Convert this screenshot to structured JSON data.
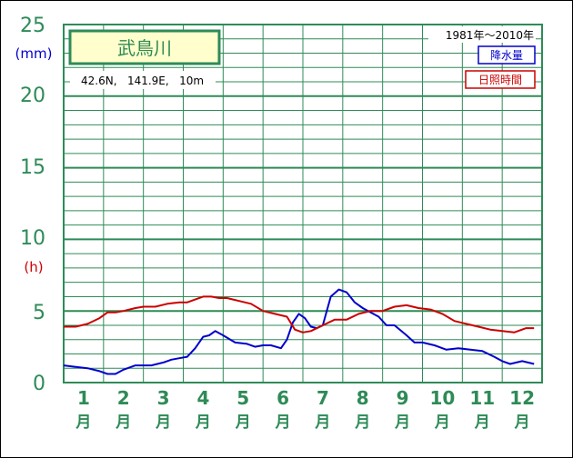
{
  "station": {
    "name": "武鳥川",
    "coords": "42.6N,   141.9E,   10m",
    "period": "1981年～2010年"
  },
  "legend": {
    "rain": "降水量",
    "sun": "日照時間"
  },
  "axis": {
    "y_ticks": [
      "25",
      "20",
      "15",
      "10",
      "5",
      "0"
    ],
    "unit_rain": "(mm)",
    "unit_sun": "(h)",
    "months": [
      "1",
      "2",
      "3",
      "4",
      "5",
      "6",
      "7",
      "8",
      "9",
      "10",
      "11",
      "12"
    ],
    "month_suffix": "月"
  },
  "colors": {
    "grid": "#2e8b57",
    "rain": "#0000cc",
    "sun": "#cc0000",
    "station_box_fill": "#fffecc"
  },
  "chart_data": {
    "type": "line",
    "x_unit": "month (day-of-year fraction)",
    "xlim": [
      1,
      13
    ],
    "ylim": [
      0,
      25
    ],
    "y_ticks": [
      0,
      5,
      10,
      15,
      20,
      25
    ],
    "grid": true,
    "legend_placement": "top-right",
    "series": [
      {
        "name": "降水量",
        "color": "#0000cc",
        "x": [
          1.0,
          1.3,
          1.6,
          1.9,
          2.1,
          2.3,
          2.5,
          2.8,
          3.0,
          3.2,
          3.5,
          3.7,
          3.9,
          4.1,
          4.3,
          4.5,
          4.65,
          4.8,
          5.0,
          5.3,
          5.6,
          5.8,
          6.0,
          6.2,
          6.45,
          6.6,
          6.75,
          6.9,
          7.05,
          7.2,
          7.35,
          7.5,
          7.7,
          7.9,
          8.1,
          8.3,
          8.5,
          8.7,
          8.9,
          9.1,
          9.3,
          9.6,
          9.8,
          10.0,
          10.3,
          10.6,
          10.9,
          11.2,
          11.5,
          11.8,
          12.0,
          12.2,
          12.5,
          12.8
        ],
        "y": [
          1.2,
          1.1,
          1.0,
          0.8,
          0.6,
          0.6,
          0.9,
          1.2,
          1.2,
          1.2,
          1.4,
          1.6,
          1.7,
          1.8,
          2.4,
          3.2,
          3.3,
          3.6,
          3.3,
          2.8,
          2.7,
          2.5,
          2.6,
          2.6,
          2.4,
          3.0,
          4.2,
          4.8,
          4.5,
          3.9,
          3.8,
          4.0,
          6.0,
          6.5,
          6.3,
          5.6,
          5.2,
          4.9,
          4.6,
          4.0,
          4.0,
          3.3,
          2.8,
          2.8,
          2.6,
          2.3,
          2.4,
          2.3,
          2.2,
          1.8,
          1.5,
          1.3,
          1.5,
          1.3
        ]
      },
      {
        "name": "日照時間",
        "color": "#cc0000",
        "x": [
          1.0,
          1.3,
          1.6,
          1.9,
          2.1,
          2.3,
          2.5,
          2.8,
          3.0,
          3.3,
          3.6,
          3.9,
          4.1,
          4.3,
          4.5,
          4.7,
          4.9,
          5.1,
          5.4,
          5.7,
          6.0,
          6.3,
          6.6,
          6.8,
          7.0,
          7.2,
          7.5,
          7.8,
          8.1,
          8.4,
          8.7,
          9.0,
          9.3,
          9.6,
          9.9,
          10.2,
          10.5,
          10.8,
          11.1,
          11.4,
          11.7,
          12.0,
          12.3,
          12.6,
          12.8
        ],
        "y": [
          3.9,
          3.9,
          4.1,
          4.5,
          4.9,
          4.9,
          5.0,
          5.2,
          5.3,
          5.3,
          5.5,
          5.6,
          5.6,
          5.8,
          6.0,
          6.0,
          5.9,
          5.9,
          5.7,
          5.5,
          5.0,
          4.8,
          4.6,
          3.7,
          3.5,
          3.6,
          4.0,
          4.4,
          4.4,
          4.8,
          5.0,
          5.0,
          5.3,
          5.4,
          5.2,
          5.1,
          4.8,
          4.3,
          4.1,
          3.9,
          3.7,
          3.6,
          3.5,
          3.8,
          3.8
        ]
      }
    ]
  }
}
